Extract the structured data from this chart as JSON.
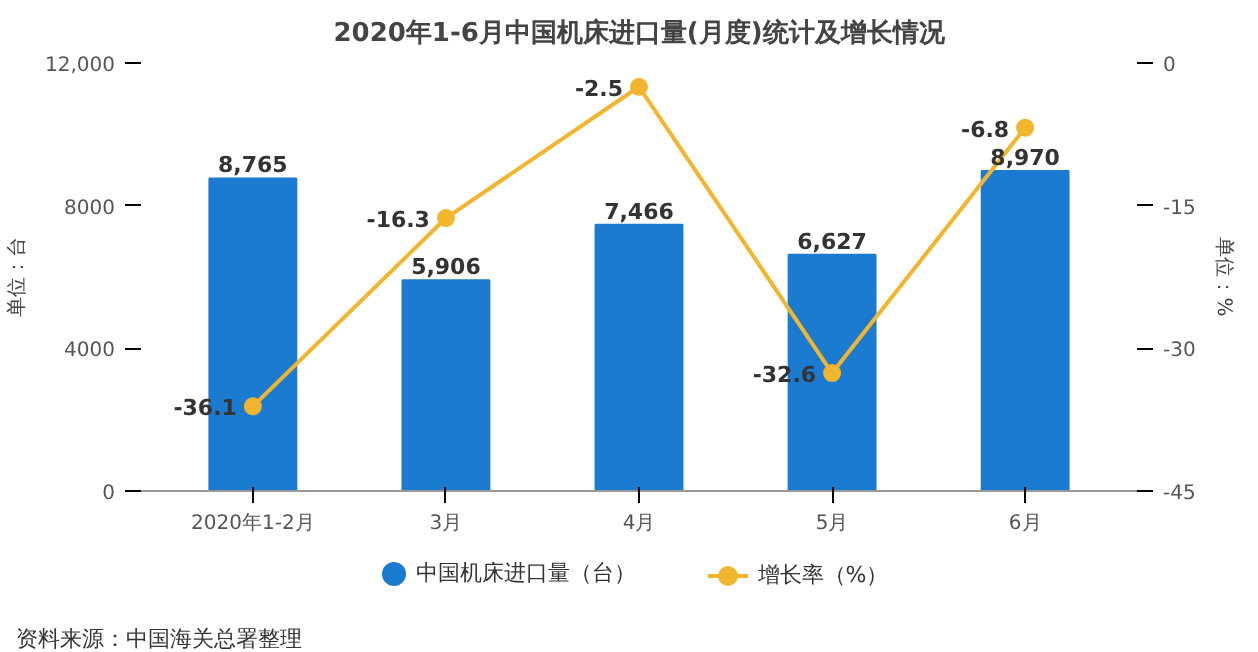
{
  "chart_data": {
    "type": "bar",
    "title": "2020年1-6月中国机床进口量(月度)统计及增长情况",
    "categories": [
      "2020年1-2月",
      "3月",
      "4月",
      "5月",
      "6月"
    ],
    "series": [
      {
        "name": "中国机床进口量（台）",
        "color": "#1b7bd0",
        "values": [
          8765,
          5906,
          7466,
          6627,
          8970
        ],
        "value_labels": [
          "8,765",
          "5,906",
          "7,466",
          "6,627",
          "8,970"
        ]
      },
      {
        "name": "增长率（%）",
        "type": "line",
        "axis": "y2",
        "color": "#f2b52e",
        "marker": "circle",
        "values": [
          -36.1,
          -16.3,
          -2.5,
          -32.6,
          -6.8
        ]
      }
    ],
    "ylabel": "单位：台",
    "y2label": "单位：%",
    "ylim": [
      0,
      12000
    ],
    "yticks": [
      0,
      4000,
      8000,
      {
        "value": 12000,
        "label": "12,000"
      }
    ],
    "y2lim": [
      -45,
      0
    ],
    "y2ticks": [
      -45,
      -30,
      -15,
      0
    ],
    "data_labels": true,
    "grid": false,
    "legend": "bottom",
    "annotations": [
      "资料来源：中国海关总署整理"
    ]
  }
}
